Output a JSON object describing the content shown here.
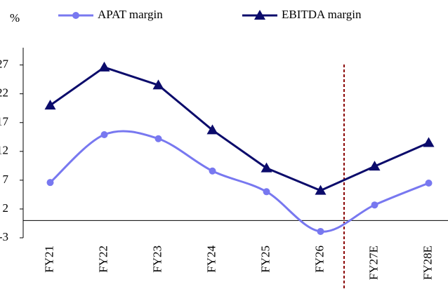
{
  "chart_data": {
    "type": "line",
    "unit_label": "%",
    "categories": [
      "FY21",
      "FY22",
      "FY23",
      "FY24",
      "FY25",
      "FY26",
      "FY27E",
      "FY28E"
    ],
    "series": [
      {
        "name": "APAT margin",
        "color": "#7878f0",
        "marker": "circle",
        "smooth": true,
        "values": [
          6.6,
          14.9,
          14.2,
          8.6,
          5.0,
          -1.9,
          2.7,
          6.5
        ]
      },
      {
        "name": "EBITDA margin",
        "color": "#0b0b6b",
        "marker": "triangle",
        "smooth": false,
        "values": [
          20.0,
          26.6,
          23.5,
          15.7,
          9.1,
          5.2,
          9.4,
          13.5
        ]
      }
    ],
    "ylim": [
      -3,
      30
    ],
    "yticks": [
      -3,
      2,
      7,
      12,
      17,
      22,
      27
    ],
    "grid": false
  }
}
